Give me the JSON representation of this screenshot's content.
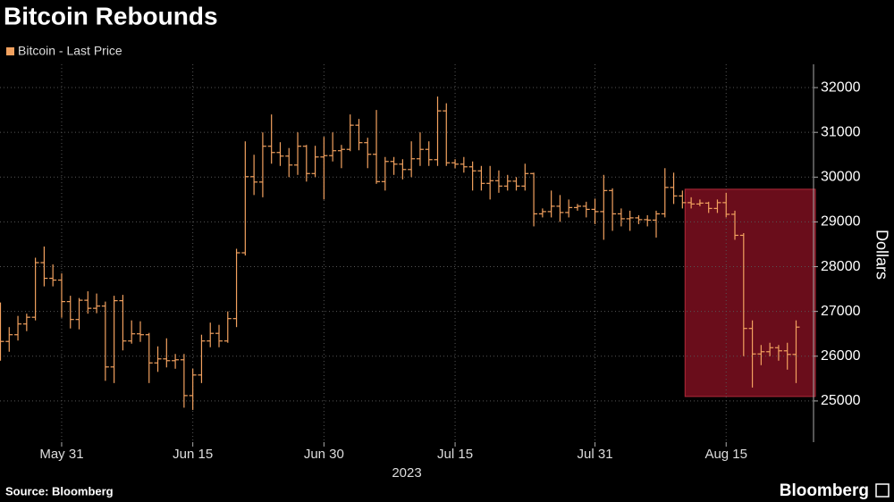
{
  "chart_data": {
    "type": "ohlc",
    "title": "Bitcoin Rebounds",
    "xlabel": "2023",
    "ylabel": "Dollars",
    "source": "Source: Bloomberg",
    "logo": "Bloomberg",
    "categories": [
      null,
      null,
      null,
      null,
      null,
      null,
      null,
      "May 31",
      null,
      null,
      null,
      null,
      null,
      null,
      null,
      null,
      null,
      null,
      null,
      null,
      null,
      null,
      "Jun 15",
      null,
      null,
      null,
      null,
      null,
      null,
      null,
      null,
      null,
      null,
      null,
      null,
      null,
      null,
      "Jun 30",
      null,
      null,
      null,
      null,
      null,
      null,
      null,
      null,
      null,
      null,
      null,
      null,
      null,
      null,
      "Jul 15",
      null,
      null,
      null,
      null,
      null,
      null,
      null,
      null,
      null,
      null,
      null,
      null,
      null,
      null,
      null,
      "Jul 31",
      null,
      null,
      null,
      null,
      null,
      null,
      null,
      null,
      null,
      null,
      null,
      null,
      null,
      null,
      "Aug 15",
      null,
      null,
      null,
      null,
      null,
      null,
      null,
      null
    ],
    "series": [
      {
        "name": "Bitcoin - Last Price",
        "color": "#f2a15f",
        "open": [
          26850,
          26330,
          26480,
          26720,
          26870,
          28090,
          27740,
          27700,
          27220,
          26820,
          27250,
          27070,
          27120,
          25760,
          27240,
          26340,
          26500,
          26480,
          25850,
          25940,
          25900,
          25920,
          25120,
          25580,
          26340,
          26510,
          26340,
          26840,
          28310,
          30010,
          29890,
          30690,
          30550,
          30470,
          30270,
          30690,
          30080,
          30450,
          30480,
          30590,
          30620,
          31160,
          30770,
          30510,
          29900,
          30350,
          30290,
          30170,
          30410,
          30620,
          30390,
          31480,
          30320,
          30290,
          30230,
          30140,
          29860,
          29920,
          29800,
          29910,
          29800,
          30080,
          29180,
          29230,
          29350,
          29210,
          29320,
          29350,
          29280,
          29230,
          29700,
          29180,
          29070,
          29090,
          29050,
          29040,
          29180,
          29770,
          29580,
          29430,
          29400,
          29420,
          29300,
          29430,
          29170,
          28700,
          26620,
          26050,
          26100,
          26190,
          26120,
          26040
        ],
        "high": [
          27200,
          26650,
          26900,
          26950,
          28200,
          28450,
          28050,
          27850,
          27350,
          27300,
          27450,
          27400,
          27220,
          27350,
          27370,
          26800,
          26780,
          26520,
          26220,
          26400,
          26050,
          26050,
          25720,
          26480,
          26750,
          26700,
          27000,
          28400,
          30800,
          30500,
          31000,
          31400,
          30780,
          30650,
          31000,
          30720,
          30700,
          30900,
          31000,
          30720,
          31400,
          31300,
          30880,
          31500,
          30450,
          30450,
          30400,
          30800,
          31000,
          30800,
          31800,
          31650,
          30400,
          30450,
          30350,
          30250,
          30250,
          30150,
          30050,
          30000,
          30300,
          30100,
          29300,
          29700,
          29600,
          29500,
          29400,
          29450,
          29520,
          30050,
          29750,
          29300,
          29250,
          29150,
          29150,
          29250,
          30200,
          30100,
          29700,
          29550,
          29500,
          29450,
          29500,
          29650,
          29250,
          28750,
          26800,
          26250,
          26300,
          26250,
          26300,
          26800
        ],
        "low": [
          25900,
          26100,
          26350,
          26560,
          26800,
          27560,
          27560,
          26860,
          26620,
          26600,
          26950,
          26960,
          25450,
          25400,
          26130,
          26280,
          26320,
          25400,
          25650,
          25750,
          25720,
          24850,
          24800,
          25400,
          26200,
          26200,
          26300,
          26650,
          28250,
          29600,
          29550,
          30300,
          30250,
          30000,
          30050,
          29900,
          30000,
          29500,
          30350,
          30200,
          30580,
          30600,
          30200,
          29850,
          29700,
          30050,
          29950,
          30000,
          30250,
          30250,
          30250,
          30250,
          30200,
          30100,
          29700,
          29700,
          29500,
          29650,
          29700,
          29700,
          29700,
          28900,
          29100,
          29100,
          29000,
          29100,
          29250,
          29100,
          28950,
          28600,
          28800,
          28900,
          28800,
          28950,
          28900,
          28650,
          29100,
          29400,
          29300,
          29300,
          29350,
          29200,
          29200,
          29100,
          28600,
          26000,
          25300,
          25800,
          26000,
          25900,
          25700,
          25400
        ],
        "close": [
          26330,
          26480,
          26720,
          26870,
          28090,
          27740,
          27700,
          27220,
          26820,
          27250,
          27070,
          27120,
          25760,
          27240,
          26340,
          26500,
          26480,
          25850,
          25940,
          25900,
          25920,
          25120,
          25580,
          26340,
          26510,
          26340,
          26840,
          28310,
          30010,
          29890,
          30690,
          30550,
          30470,
          30270,
          30690,
          30080,
          30450,
          30480,
          30590,
          30620,
          31160,
          30770,
          30510,
          29900,
          30350,
          30290,
          30170,
          30410,
          30620,
          30390,
          31480,
          30320,
          30290,
          30230,
          30140,
          29860,
          29920,
          29800,
          29910,
          29800,
          30080,
          29180,
          29230,
          29350,
          29210,
          29320,
          29350,
          29280,
          29230,
          29700,
          29180,
          29070,
          29090,
          29050,
          29040,
          29180,
          29770,
          29580,
          29430,
          29400,
          29420,
          29300,
          29430,
          29170,
          28700,
          26620,
          26050,
          26100,
          26190,
          26120,
          26040,
          26650
        ]
      }
    ],
    "ylim": [
      24080,
      32520
    ],
    "yticks": [
      25000,
      26000,
      27000,
      28000,
      29000,
      30000,
      31000,
      32000
    ],
    "grid": true,
    "highlight": {
      "x": [
        78.3,
        93.2
      ],
      "y": [
        25100,
        29730
      ],
      "color": "#6a0d1b",
      "border": "#b02a3a"
    }
  }
}
